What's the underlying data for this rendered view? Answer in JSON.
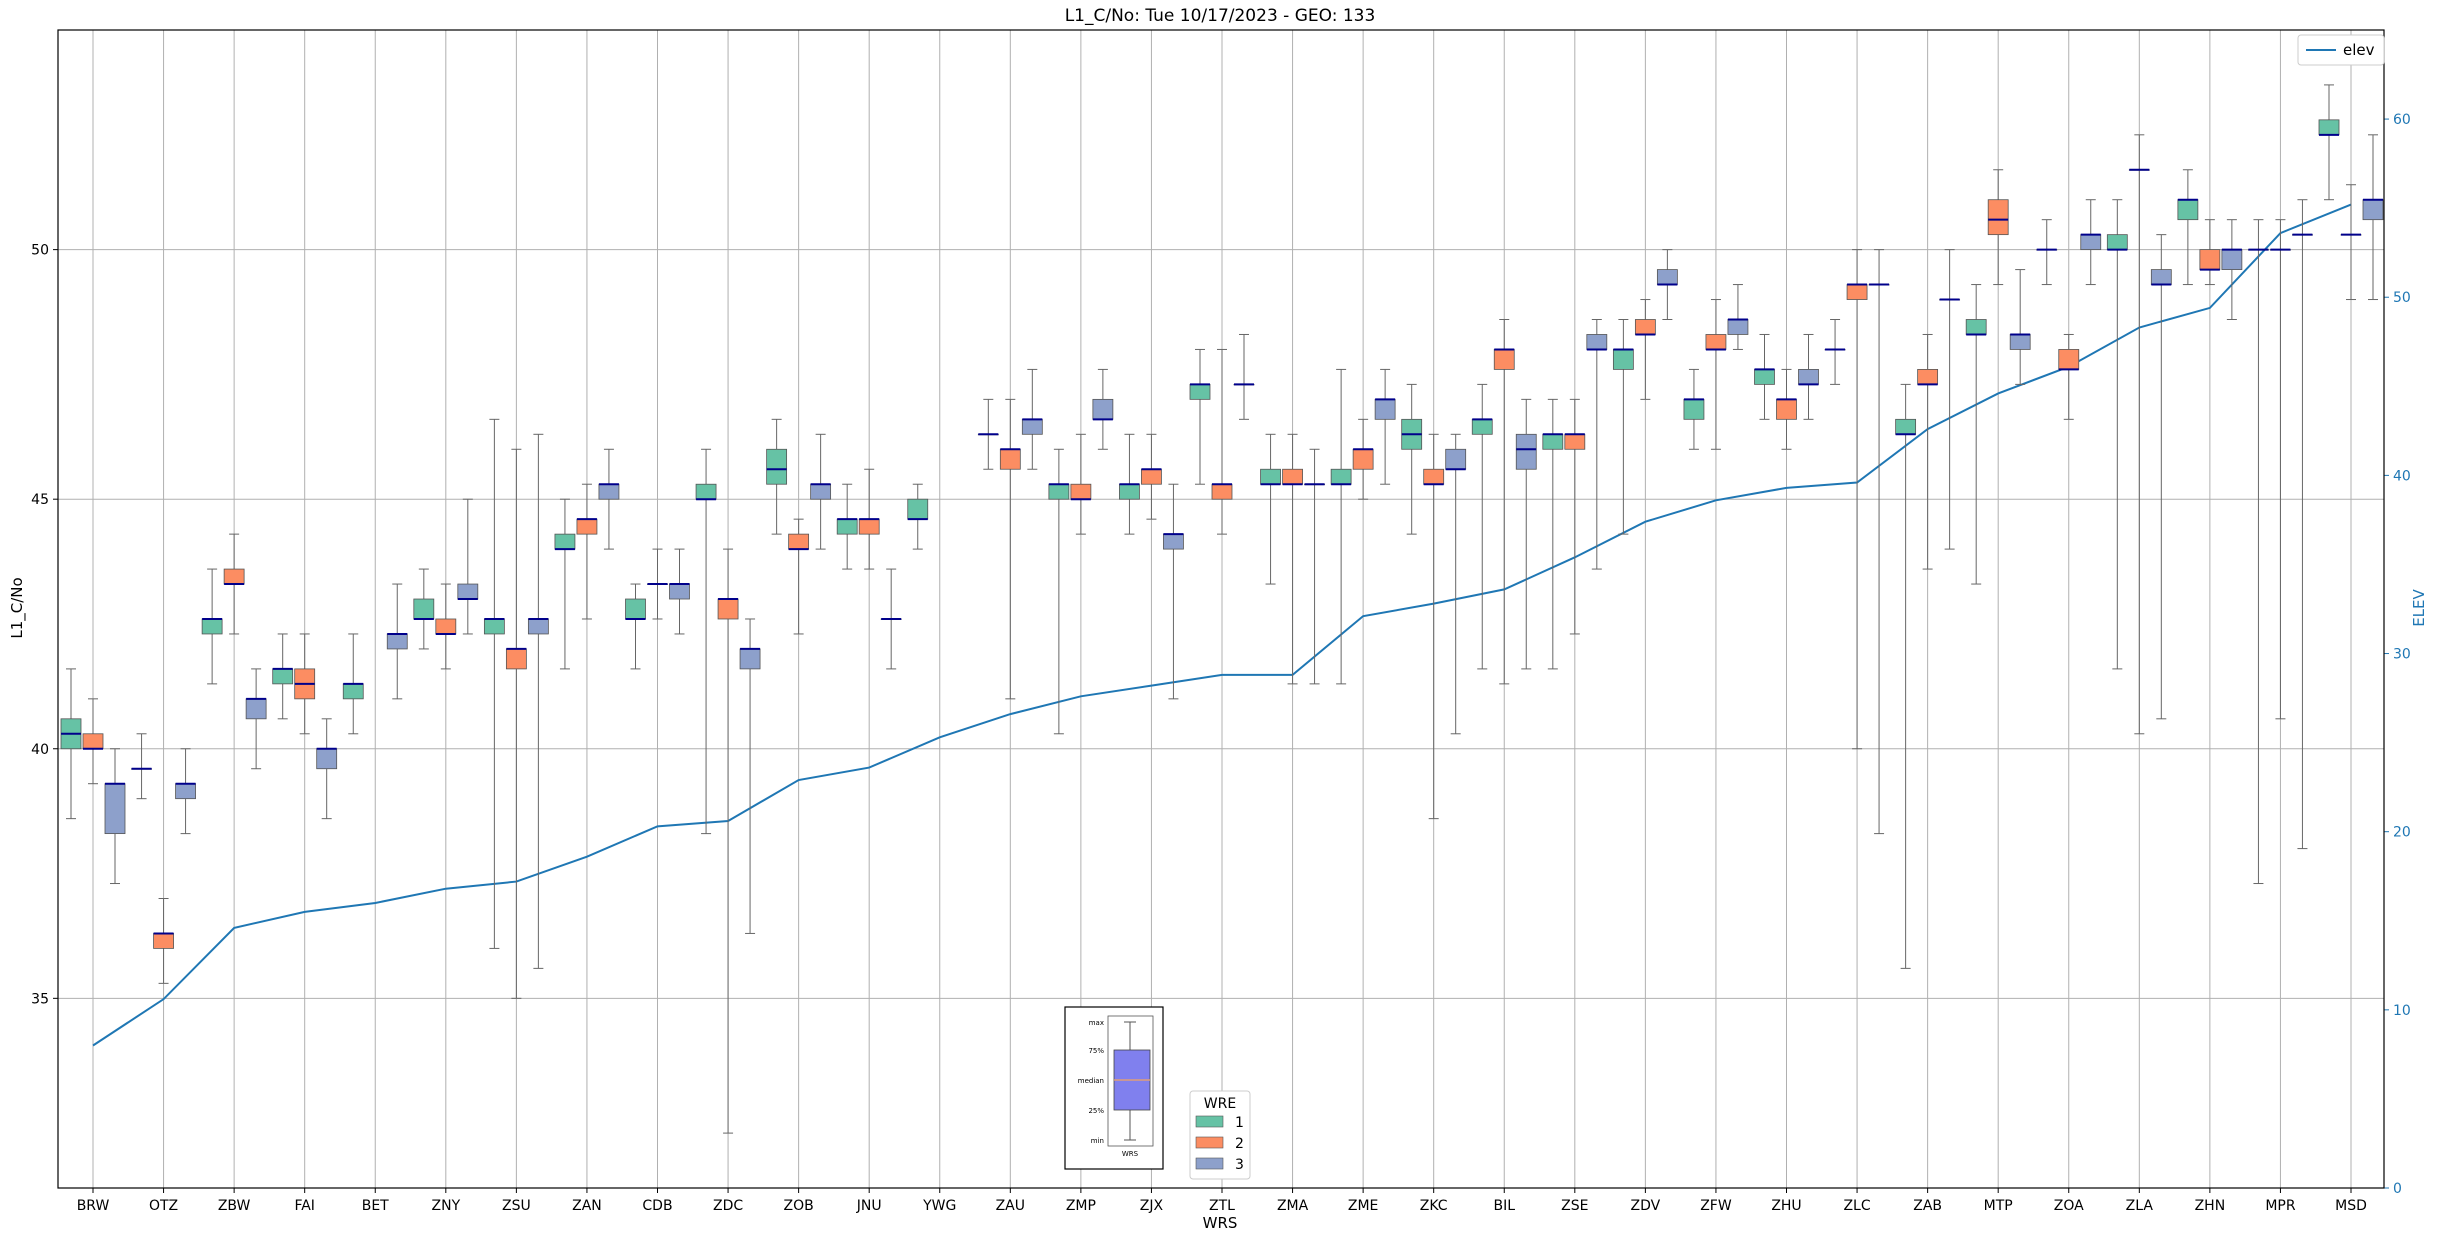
{
  "chart_data": {
    "type": "box",
    "title": "L1_C/No: Tue 10/17/2023 - GEO: 133",
    "xlabel": "WRS",
    "ylabel": "L1_C/No",
    "y2label": "ELEV",
    "ylim": [
      31.2,
      54.4
    ],
    "y2lim": [
      0,
      65
    ],
    "yticks": [
      35,
      40,
      45,
      50
    ],
    "y2ticks": [
      0,
      10,
      20,
      30,
      40,
      50,
      60
    ],
    "grid": true,
    "colors": {
      "1": "#66c2a5",
      "2": "#fc8d62",
      "3": "#8da0cb",
      "elev": "#1f77b4",
      "median": "#00008b"
    },
    "categories": [
      "BRW",
      "OTZ",
      "ZBW",
      "FAI",
      "BET",
      "ZNY",
      "ZSU",
      "ZAN",
      "CDB",
      "ZDC",
      "ZOB",
      "JNU",
      "YWG",
      "ZAU",
      "ZMP",
      "ZJX",
      "ZTL",
      "ZMA",
      "ZME",
      "ZKC",
      "BIL",
      "ZSE",
      "ZDV",
      "ZFW",
      "ZHU",
      "ZLC",
      "ZAB",
      "MTP",
      "ZOA",
      "ZLA",
      "ZHN",
      "MPR",
      "MSD"
    ],
    "boxes": [
      {
        "site": "BRW",
        "wre": "1",
        "min": 38.6,
        "q1": 40.0,
        "median": 40.3,
        "q3": 40.6,
        "max": 41.6
      },
      {
        "site": "BRW",
        "wre": "2",
        "min": 39.3,
        "q1": 40.0,
        "median": 40.0,
        "q3": 40.3,
        "max": 41.0
      },
      {
        "site": "BRW",
        "wre": "3",
        "min": 37.3,
        "q1": 38.3,
        "median": 39.3,
        "q3": 39.3,
        "max": 40.0
      },
      {
        "site": "OTZ",
        "wre": "1",
        "min": 39.0,
        "q1": 39.6,
        "median": 39.6,
        "q3": 39.6,
        "max": 40.3
      },
      {
        "site": "OTZ",
        "wre": "2",
        "min": 35.3,
        "q1": 36.0,
        "median": 36.3,
        "q3": 36.3,
        "max": 37.0
      },
      {
        "site": "OTZ",
        "wre": "3",
        "min": 38.3,
        "q1": 39.0,
        "median": 39.3,
        "q3": 39.3,
        "max": 40.0
      },
      {
        "site": "ZBW",
        "wre": "1",
        "min": 41.3,
        "q1": 42.3,
        "median": 42.6,
        "q3": 42.6,
        "max": 43.6
      },
      {
        "site": "ZBW",
        "wre": "2",
        "min": 42.3,
        "q1": 43.3,
        "median": 43.3,
        "q3": 43.6,
        "max": 44.3
      },
      {
        "site": "ZBW",
        "wre": "3",
        "min": 39.6,
        "q1": 40.6,
        "median": 41.0,
        "q3": 41.0,
        "max": 41.6
      },
      {
        "site": "FAI",
        "wre": "1",
        "min": 40.6,
        "q1": 41.3,
        "median": 41.6,
        "q3": 41.6,
        "max": 42.3
      },
      {
        "site": "FAI",
        "wre": "2",
        "min": 40.3,
        "q1": 41.0,
        "median": 41.3,
        "q3": 41.6,
        "max": 42.3
      },
      {
        "site": "FAI",
        "wre": "3",
        "min": 38.6,
        "q1": 39.6,
        "median": 40.0,
        "q3": 40.0,
        "max": 40.6
      },
      {
        "site": "BET",
        "wre": "1",
        "min": 40.3,
        "q1": 41.0,
        "median": 41.3,
        "q3": 41.3,
        "max": 42.3
      },
      {
        "site": "BET",
        "wre": "3",
        "min": 41.0,
        "q1": 42.0,
        "median": 42.3,
        "q3": 42.3,
        "max": 43.3
      },
      {
        "site": "ZNY",
        "wre": "1",
        "min": 42.0,
        "q1": 42.6,
        "median": 42.6,
        "q3": 43.0,
        "max": 43.6
      },
      {
        "site": "ZNY",
        "wre": "2",
        "min": 41.6,
        "q1": 42.3,
        "median": 42.3,
        "q3": 42.6,
        "max": 43.3
      },
      {
        "site": "ZNY",
        "wre": "3",
        "min": 42.3,
        "q1": 43.0,
        "median": 43.0,
        "q3": 43.3,
        "max": 45.0
      },
      {
        "site": "ZSU",
        "wre": "1",
        "min": 36.0,
        "q1": 42.3,
        "median": 42.6,
        "q3": 42.6,
        "max": 46.6
      },
      {
        "site": "ZSU",
        "wre": "2",
        "min": 35.0,
        "q1": 41.6,
        "median": 42.0,
        "q3": 42.0,
        "max": 46.0
      },
      {
        "site": "ZSU",
        "wre": "3",
        "min": 35.6,
        "q1": 42.3,
        "median": 42.6,
        "q3": 42.6,
        "max": 46.3
      },
      {
        "site": "ZAN",
        "wre": "1",
        "min": 41.6,
        "q1": 44.0,
        "median": 44.0,
        "q3": 44.3,
        "max": 45.0
      },
      {
        "site": "ZAN",
        "wre": "2",
        "min": 42.6,
        "q1": 44.3,
        "median": 44.6,
        "q3": 44.6,
        "max": 45.3
      },
      {
        "site": "ZAN",
        "wre": "3",
        "min": 44.0,
        "q1": 45.0,
        "median": 45.3,
        "q3": 45.3,
        "max": 46.0
      },
      {
        "site": "CDB",
        "wre": "1",
        "min": 41.6,
        "q1": 42.6,
        "median": 42.6,
        "q3": 43.0,
        "max": 43.3
      },
      {
        "site": "CDB",
        "wre": "2",
        "min": 42.6,
        "q1": 43.3,
        "median": 43.3,
        "q3": 43.3,
        "max": 44.0
      },
      {
        "site": "CDB",
        "wre": "3",
        "min": 42.3,
        "q1": 43.0,
        "median": 43.3,
        "q3": 43.3,
        "max": 44.0
      },
      {
        "site": "ZDC",
        "wre": "1",
        "min": 38.3,
        "q1": 45.0,
        "median": 45.0,
        "q3": 45.3,
        "max": 46.0
      },
      {
        "site": "ZDC",
        "wre": "2",
        "min": 32.3,
        "q1": 42.6,
        "median": 43.0,
        "q3": 43.0,
        "max": 44.0
      },
      {
        "site": "ZDC",
        "wre": "3",
        "min": 36.3,
        "q1": 41.6,
        "median": 42.0,
        "q3": 42.0,
        "max": 42.6
      },
      {
        "site": "ZOB",
        "wre": "1",
        "min": 44.3,
        "q1": 45.3,
        "median": 45.6,
        "q3": 46.0,
        "max": 46.6
      },
      {
        "site": "ZOB",
        "wre": "2",
        "min": 42.3,
        "q1": 44.0,
        "median": 44.0,
        "q3": 44.3,
        "max": 44.6
      },
      {
        "site": "ZOB",
        "wre": "3",
        "min": 44.0,
        "q1": 45.0,
        "median": 45.3,
        "q3": 45.3,
        "max": 46.3
      },
      {
        "site": "JNU",
        "wre": "1",
        "min": 43.6,
        "q1": 44.3,
        "median": 44.6,
        "q3": 44.6,
        "max": 45.3
      },
      {
        "site": "JNU",
        "wre": "2",
        "min": 43.6,
        "q1": 44.3,
        "median": 44.6,
        "q3": 44.6,
        "max": 45.6
      },
      {
        "site": "JNU",
        "wre": "3",
        "min": 41.6,
        "q1": 42.6,
        "median": 42.6,
        "q3": 42.6,
        "max": 43.6
      },
      {
        "site": "YWG",
        "wre": "1",
        "min": 44.0,
        "q1": 44.6,
        "median": 44.6,
        "q3": 45.0,
        "max": 45.3
      },
      {
        "site": "ZAU",
        "wre": "1",
        "min": 45.6,
        "q1": 46.3,
        "median": 46.3,
        "q3": 46.3,
        "max": 47.0
      },
      {
        "site": "ZAU",
        "wre": "2",
        "min": 41.0,
        "q1": 45.6,
        "median": 46.0,
        "q3": 46.0,
        "max": 47.0
      },
      {
        "site": "ZAU",
        "wre": "3",
        "min": 45.6,
        "q1": 46.3,
        "median": 46.6,
        "q3": 46.6,
        "max": 47.6
      },
      {
        "site": "ZMP",
        "wre": "1",
        "min": 40.3,
        "q1": 45.0,
        "median": 45.3,
        "q3": 45.3,
        "max": 46.0
      },
      {
        "site": "ZMP",
        "wre": "2",
        "min": 44.3,
        "q1": 45.0,
        "median": 45.0,
        "q3": 45.3,
        "max": 46.3
      },
      {
        "site": "ZMP",
        "wre": "3",
        "min": 46.0,
        "q1": 46.6,
        "median": 46.6,
        "q3": 47.0,
        "max": 47.6
      },
      {
        "site": "ZJX",
        "wre": "1",
        "min": 44.3,
        "q1": 45.0,
        "median": 45.3,
        "q3": 45.3,
        "max": 46.3
      },
      {
        "site": "ZJX",
        "wre": "2",
        "min": 44.6,
        "q1": 45.3,
        "median": 45.6,
        "q3": 45.6,
        "max": 46.3
      },
      {
        "site": "ZJX",
        "wre": "3",
        "min": 41.0,
        "q1": 44.0,
        "median": 44.3,
        "q3": 44.3,
        "max": 45.3
      },
      {
        "site": "ZTL",
        "wre": "1",
        "min": 45.3,
        "q1": 47.0,
        "median": 47.3,
        "q3": 47.3,
        "max": 48.0
      },
      {
        "site": "ZTL",
        "wre": "2",
        "min": 44.3,
        "q1": 45.0,
        "median": 45.3,
        "q3": 45.3,
        "max": 48.0
      },
      {
        "site": "ZTL",
        "wre": "3",
        "min": 46.6,
        "q1": 47.3,
        "median": 47.3,
        "q3": 47.3,
        "max": 48.3
      },
      {
        "site": "ZMA",
        "wre": "1",
        "min": 43.3,
        "q1": 45.3,
        "median": 45.3,
        "q3": 45.6,
        "max": 46.3
      },
      {
        "site": "ZMA",
        "wre": "2",
        "min": 41.3,
        "q1": 45.3,
        "median": 45.3,
        "q3": 45.6,
        "max": 46.3
      },
      {
        "site": "ZMA",
        "wre": "3",
        "min": 41.3,
        "q1": 45.3,
        "median": 45.3,
        "q3": 45.3,
        "max": 46.0
      },
      {
        "site": "ZME",
        "wre": "1",
        "min": 41.3,
        "q1": 45.3,
        "median": 45.3,
        "q3": 45.6,
        "max": 47.6
      },
      {
        "site": "ZME",
        "wre": "2",
        "min": 45.0,
        "q1": 45.6,
        "median": 46.0,
        "q3": 46.0,
        "max": 46.6
      },
      {
        "site": "ZME",
        "wre": "3",
        "min": 45.3,
        "q1": 46.6,
        "median": 47.0,
        "q3": 47.0,
        "max": 47.6
      },
      {
        "site": "ZKC",
        "wre": "1",
        "min": 44.3,
        "q1": 46.0,
        "median": 46.3,
        "q3": 46.6,
        "max": 47.3
      },
      {
        "site": "ZKC",
        "wre": "2",
        "min": 38.6,
        "q1": 45.3,
        "median": 45.3,
        "q3": 45.6,
        "max": 46.3
      },
      {
        "site": "ZKC",
        "wre": "3",
        "min": 40.3,
        "q1": 45.6,
        "median": 45.6,
        "q3": 46.0,
        "max": 46.3
      },
      {
        "site": "BIL",
        "wre": "1",
        "min": 41.6,
        "q1": 46.3,
        "median": 46.6,
        "q3": 46.6,
        "max": 47.3
      },
      {
        "site": "BIL",
        "wre": "2",
        "min": 41.3,
        "q1": 47.6,
        "median": 48.0,
        "q3": 48.0,
        "max": 48.6
      },
      {
        "site": "BIL",
        "wre": "3",
        "min": 41.6,
        "q1": 45.6,
        "median": 46.0,
        "q3": 46.3,
        "max": 47.0
      },
      {
        "site": "ZSE",
        "wre": "1",
        "min": 41.6,
        "q1": 46.0,
        "median": 46.3,
        "q3": 46.3,
        "max": 47.0
      },
      {
        "site": "ZSE",
        "wre": "2",
        "min": 42.3,
        "q1": 46.0,
        "median": 46.3,
        "q3": 46.3,
        "max": 47.0
      },
      {
        "site": "ZSE",
        "wre": "3",
        "min": 43.6,
        "q1": 48.0,
        "median": 48.0,
        "q3": 48.3,
        "max": 48.6
      },
      {
        "site": "ZDV",
        "wre": "1",
        "min": 44.3,
        "q1": 47.6,
        "median": 48.0,
        "q3": 48.0,
        "max": 48.6
      },
      {
        "site": "ZDV",
        "wre": "2",
        "min": 47.0,
        "q1": 48.3,
        "median": 48.3,
        "q3": 48.6,
        "max": 49.0
      },
      {
        "site": "ZDV",
        "wre": "3",
        "min": 48.6,
        "q1": 49.3,
        "median": 49.3,
        "q3": 49.6,
        "max": 50.0
      },
      {
        "site": "ZFW",
        "wre": "1",
        "min": 46.0,
        "q1": 46.6,
        "median": 47.0,
        "q3": 47.0,
        "max": 47.6
      },
      {
        "site": "ZFW",
        "wre": "2",
        "min": 46.0,
        "q1": 48.0,
        "median": 48.0,
        "q3": 48.3,
        "max": 49.0
      },
      {
        "site": "ZFW",
        "wre": "3",
        "min": 48.0,
        "q1": 48.3,
        "median": 48.6,
        "q3": 48.6,
        "max": 49.3
      },
      {
        "site": "ZHU",
        "wre": "1",
        "min": 46.6,
        "q1": 47.3,
        "median": 47.6,
        "q3": 47.6,
        "max": 48.3
      },
      {
        "site": "ZHU",
        "wre": "2",
        "min": 46.0,
        "q1": 46.6,
        "median": 47.0,
        "q3": 47.0,
        "max": 47.6
      },
      {
        "site": "ZHU",
        "wre": "3",
        "min": 46.6,
        "q1": 47.3,
        "median": 47.3,
        "q3": 47.6,
        "max": 48.3
      },
      {
        "site": "ZLC",
        "wre": "1",
        "min": 47.3,
        "q1": 48.0,
        "median": 48.0,
        "q3": 48.0,
        "max": 48.6
      },
      {
        "site": "ZLC",
        "wre": "2",
        "min": 40.0,
        "q1": 49.0,
        "median": 49.3,
        "q3": 49.3,
        "max": 50.0
      },
      {
        "site": "ZLC",
        "wre": "3",
        "min": 38.3,
        "q1": 49.3,
        "median": 49.3,
        "q3": 49.3,
        "max": 50.0
      },
      {
        "site": "ZAB",
        "wre": "1",
        "min": 35.6,
        "q1": 46.3,
        "median": 46.3,
        "q3": 46.6,
        "max": 47.3
      },
      {
        "site": "ZAB",
        "wre": "2",
        "min": 43.6,
        "q1": 47.3,
        "median": 47.3,
        "q3": 47.6,
        "max": 48.3
      },
      {
        "site": "ZAB",
        "wre": "3",
        "min": 44.0,
        "q1": 49.0,
        "median": 49.0,
        "q3": 49.0,
        "max": 50.0
      },
      {
        "site": "MTP",
        "wre": "1",
        "min": 43.3,
        "q1": 48.3,
        "median": 48.3,
        "q3": 48.6,
        "max": 49.3
      },
      {
        "site": "MTP",
        "wre": "2",
        "min": 49.3,
        "q1": 50.3,
        "median": 50.6,
        "q3": 51.0,
        "max": 51.6
      },
      {
        "site": "MTP",
        "wre": "3",
        "min": 47.3,
        "q1": 48.0,
        "median": 48.3,
        "q3": 48.3,
        "max": 49.6
      },
      {
        "site": "ZOA",
        "wre": "1",
        "min": 49.3,
        "q1": 50.0,
        "median": 50.0,
        "q3": 50.0,
        "max": 50.6
      },
      {
        "site": "ZOA",
        "wre": "2",
        "min": 46.6,
        "q1": 47.6,
        "median": 47.6,
        "q3": 48.0,
        "max": 48.3
      },
      {
        "site": "ZOA",
        "wre": "3",
        "min": 49.3,
        "q1": 50.0,
        "median": 50.3,
        "q3": 50.3,
        "max": 51.0
      },
      {
        "site": "ZLA",
        "wre": "1",
        "min": 41.6,
        "q1": 50.0,
        "median": 50.0,
        "q3": 50.3,
        "max": 51.0
      },
      {
        "site": "ZLA",
        "wre": "2",
        "min": 40.3,
        "q1": 51.6,
        "median": 51.6,
        "q3": 51.6,
        "max": 52.3
      },
      {
        "site": "ZLA",
        "wre": "3",
        "min": 40.6,
        "q1": 49.3,
        "median": 49.3,
        "q3": 49.6,
        "max": 50.3
      },
      {
        "site": "ZHN",
        "wre": "1",
        "min": 49.3,
        "q1": 50.6,
        "median": 51.0,
        "q3": 51.0,
        "max": 51.6
      },
      {
        "site": "ZHN",
        "wre": "2",
        "min": 49.3,
        "q1": 49.6,
        "median": 49.6,
        "q3": 50.0,
        "max": 50.6
      },
      {
        "site": "ZHN",
        "wre": "3",
        "min": 48.6,
        "q1": 49.6,
        "median": 50.0,
        "q3": 50.0,
        "max": 50.6
      },
      {
        "site": "MPR",
        "wre": "1",
        "min": 37.3,
        "q1": 50.0,
        "median": 50.0,
        "q3": 50.0,
        "max": 50.6
      },
      {
        "site": "MPR",
        "wre": "2",
        "min": 40.6,
        "q1": 50.0,
        "median": 50.0,
        "q3": 50.0,
        "max": 50.6
      },
      {
        "site": "MPR",
        "wre": "3",
        "min": 38.0,
        "q1": 50.3,
        "median": 50.3,
        "q3": 50.3,
        "max": 51.0
      },
      {
        "site": "MSD",
        "wre": "1",
        "min": 51.0,
        "q1": 52.3,
        "median": 52.3,
        "q3": 52.6,
        "max": 53.3
      },
      {
        "site": "MSD",
        "wre": "2",
        "min": 49.0,
        "q1": 50.3,
        "median": 50.3,
        "q3": 50.3,
        "max": 51.3
      },
      {
        "site": "MSD",
        "wre": "3",
        "min": 49.0,
        "q1": 50.6,
        "median": 51.0,
        "q3": 51.0,
        "max": 52.3
      }
    ],
    "elev_series": {
      "name": "elev",
      "values": [
        8.0,
        10.6,
        14.6,
        15.5,
        16.0,
        16.8,
        17.2,
        18.6,
        20.3,
        20.6,
        22.9,
        23.6,
        25.3,
        26.6,
        27.6,
        28.2,
        28.8,
        28.8,
        32.1,
        32.8,
        33.6,
        35.4,
        37.4,
        38.6,
        39.3,
        39.6,
        42.6,
        44.6,
        46.1,
        48.3,
        49.4,
        53.6,
        55.2
      ]
    },
    "legend_wre": {
      "title": "WRE",
      "entries": [
        "1",
        "2",
        "3"
      ]
    },
    "legend_elev": {
      "entries": [
        "elev"
      ]
    },
    "inset_key": {
      "labels": [
        "max",
        "75%",
        "median",
        "25%",
        "min"
      ],
      "xlabel": "WRS",
      "color": "#8080ee",
      "median_color": "#f4a460"
    }
  }
}
